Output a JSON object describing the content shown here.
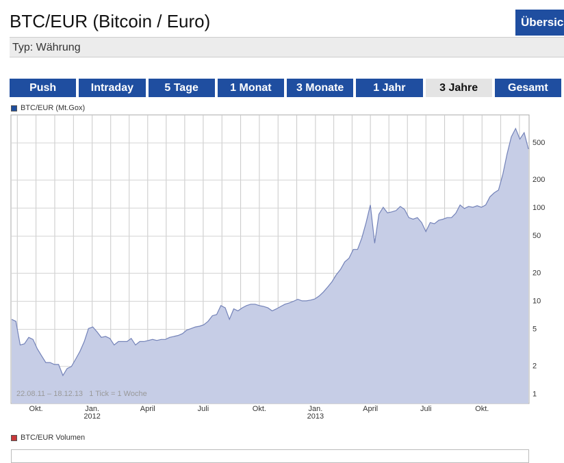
{
  "header": {
    "title": "BTC/EUR (Bitcoin / Euro)",
    "button": "Übersicht",
    "subtitle": "Typ: Währung"
  },
  "tabs": [
    "Push",
    "Intraday",
    "5 Tage",
    "1 Monat",
    "3 Monate",
    "1 Jahr",
    "3 Jahre",
    "Gesamt"
  ],
  "selected_tab": 6,
  "chart_data": {
    "type": "area",
    "series": [
      {
        "name": "BTC/EUR (Mt.Gox)",
        "color": "#1f4e9c",
        "values": [
          6.4,
          6.1,
          3.4,
          3.5,
          4.1,
          3.9,
          3.1,
          2.6,
          2.2,
          2.2,
          2.1,
          2.1,
          1.6,
          1.9,
          2.0,
          2.4,
          2.9,
          3.7,
          5.1,
          5.3,
          4.7,
          4.1,
          4.2,
          4.0,
          3.4,
          3.7,
          3.7,
          3.7,
          4.0,
          3.4,
          3.7,
          3.7,
          3.8,
          3.9,
          3.8,
          3.9,
          3.9,
          4.1,
          4.2,
          4.3,
          4.5,
          4.9,
          5.1,
          5.3,
          5.4,
          5.6,
          6.1,
          7.0,
          7.2,
          9.0,
          8.5,
          6.4,
          8.3,
          7.9,
          8.5,
          9.0,
          9.3,
          9.3,
          9.0,
          8.8,
          8.5,
          7.9,
          8.3,
          8.8,
          9.3,
          9.6,
          10,
          10.5,
          10.1,
          10.1,
          10.3,
          10.6,
          11.4,
          12.6,
          14.2,
          16.2,
          19.2,
          22,
          26.5,
          29,
          36,
          36,
          48,
          70,
          108,
          42,
          86,
          102,
          89,
          91,
          94,
          104,
          97,
          79,
          76,
          79,
          70,
          56,
          70,
          68,
          74,
          76,
          79,
          79,
          88,
          108,
          99,
          104,
          102,
          106,
          102,
          108,
          132,
          146,
          156,
          230,
          380,
          580,
          715,
          550,
          645,
          430
        ]
      }
    ],
    "annotation": "22.08.11 – 18.12.13   1 Tick = 1 Woche",
    "log_scale": true,
    "grid": true,
    "xlim": [
      0,
      121
    ],
    "xticks": [
      {
        "value": 5.71,
        "label": "Okt."
      },
      {
        "value": 18.86,
        "label": "Jan.\n2012"
      },
      {
        "value": 31.86,
        "label": "April"
      },
      {
        "value": 44.86,
        "label": "Juli"
      },
      {
        "value": 58,
        "label": "Okt."
      },
      {
        "value": 71.14,
        "label": "Jan.\n2013"
      },
      {
        "value": 84,
        "label": "April"
      },
      {
        "value": 97,
        "label": "Juli"
      },
      {
        "value": 110.14,
        "label": "Okt."
      }
    ],
    "ylim": [
      0.8,
      1000
    ],
    "yticks": [
      1,
      2,
      5,
      10,
      20,
      50,
      100,
      200,
      500
    ]
  },
  "volume": {
    "name": "BTC/EUR Volumen",
    "color": "#c8383a"
  }
}
